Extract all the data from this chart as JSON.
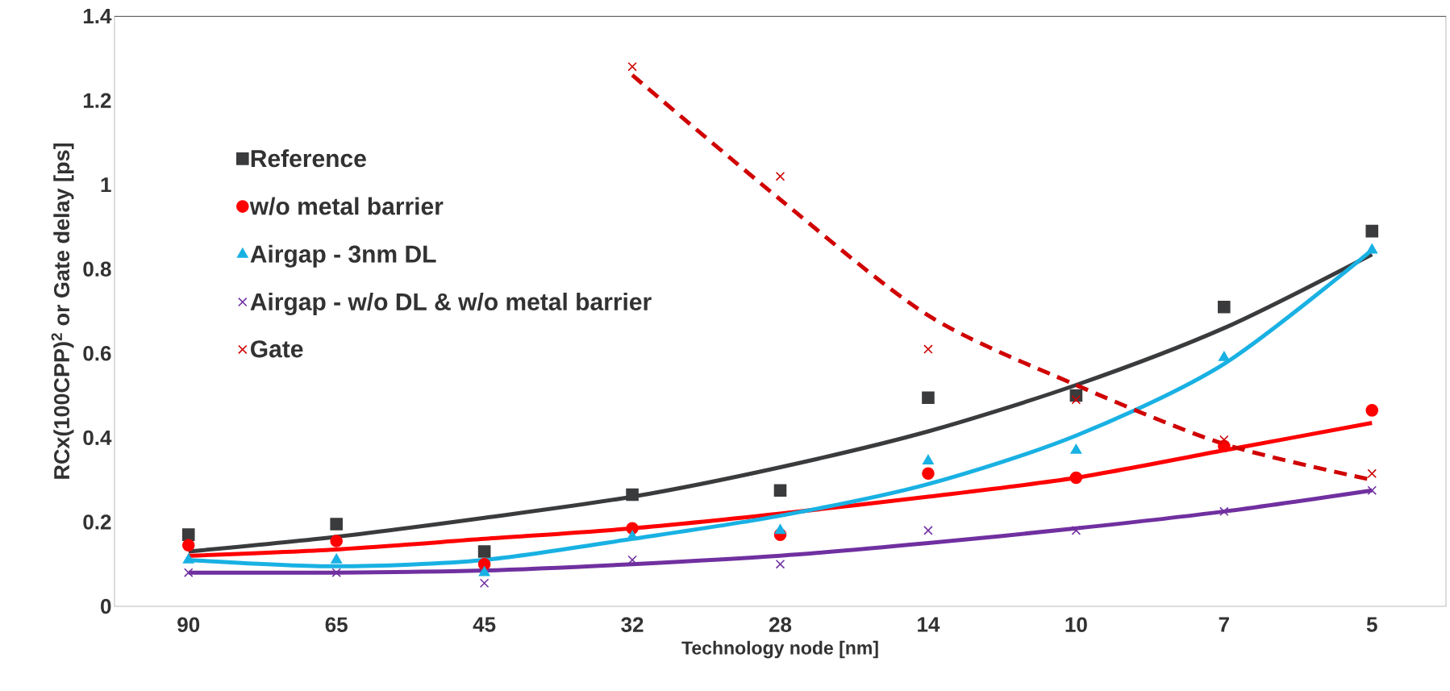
{
  "chart_data": {
    "type": "scatter",
    "xlabel": "Technology node [nm]",
    "ylabel": "RCx(100CPP)$^{2}$ or Gate delay [ps]",
    "categories": [
      "90",
      "65",
      "45",
      "32",
      "28",
      "14",
      "10",
      "7",
      "5"
    ],
    "ylim": [
      0,
      1.4
    ],
    "yticks": [
      0,
      0.2,
      0.4,
      0.6,
      0.8,
      1,
      1.2,
      1.4
    ],
    "grid": false,
    "legend": "top left",
    "series": [
      {
        "name": "Reference",
        "marker": "square",
        "color": "#3a3b3d",
        "values": [
          0.17,
          0.195,
          0.13,
          0.265,
          0.275,
          0.495,
          0.5,
          0.71,
          0.89
        ]
      },
      {
        "name": "w/o metal barrier",
        "marker": "circle",
        "color": "#ff0000",
        "values": [
          0.145,
          0.155,
          0.1,
          0.185,
          0.17,
          0.315,
          0.305,
          0.38,
          0.465
        ]
      },
      {
        "name": "Airgap - 3nm DL",
        "marker": "triangle",
        "color": "#19b1e3",
        "values": [
          0.11,
          0.11,
          0.08,
          0.165,
          0.18,
          0.345,
          0.37,
          0.59,
          0.845
        ]
      },
      {
        "name": "Airgap - w/o DL & w/o metal barrier",
        "marker": "cross",
        "color": "#7030a0",
        "values": [
          0.08,
          0.08,
          0.055,
          0.11,
          0.1,
          0.18,
          0.18,
          0.225,
          0.275
        ]
      },
      {
        "name": "Gate",
        "marker": "cross",
        "color": "#d00000",
        "values": [
          null,
          null,
          null,
          1.28,
          1.02,
          0.61,
          0.49,
          0.395,
          0.315
        ]
      },
      {
        "type": "line",
        "line_style": "solid",
        "color": "#3a3b3d",
        "values": [
          0.13,
          0.165,
          0.21,
          0.26,
          0.33,
          0.415,
          0.525,
          0.66,
          0.835
        ]
      },
      {
        "type": "line",
        "line_style": "solid",
        "color": "#ff0000",
        "values": [
          0.12,
          0.135,
          0.16,
          0.185,
          0.22,
          0.26,
          0.305,
          0.37,
          0.435
        ]
      },
      {
        "type": "line",
        "line_style": "solid",
        "color": "#19b1e3",
        "values": [
          0.11,
          0.095,
          0.11,
          0.16,
          0.215,
          0.29,
          0.405,
          0.575,
          0.845
        ]
      },
      {
        "type": "line",
        "line_style": "solid",
        "color": "#7030a0",
        "values": [
          0.08,
          0.08,
          0.085,
          0.1,
          0.12,
          0.15,
          0.185,
          0.225,
          0.275
        ]
      },
      {
        "type": "line",
        "line_style": "dashed",
        "color": "#d00000",
        "values": [
          null,
          null,
          null,
          1.26,
          0.965,
          0.69,
          0.525,
          0.385,
          0.3
        ]
      }
    ]
  }
}
